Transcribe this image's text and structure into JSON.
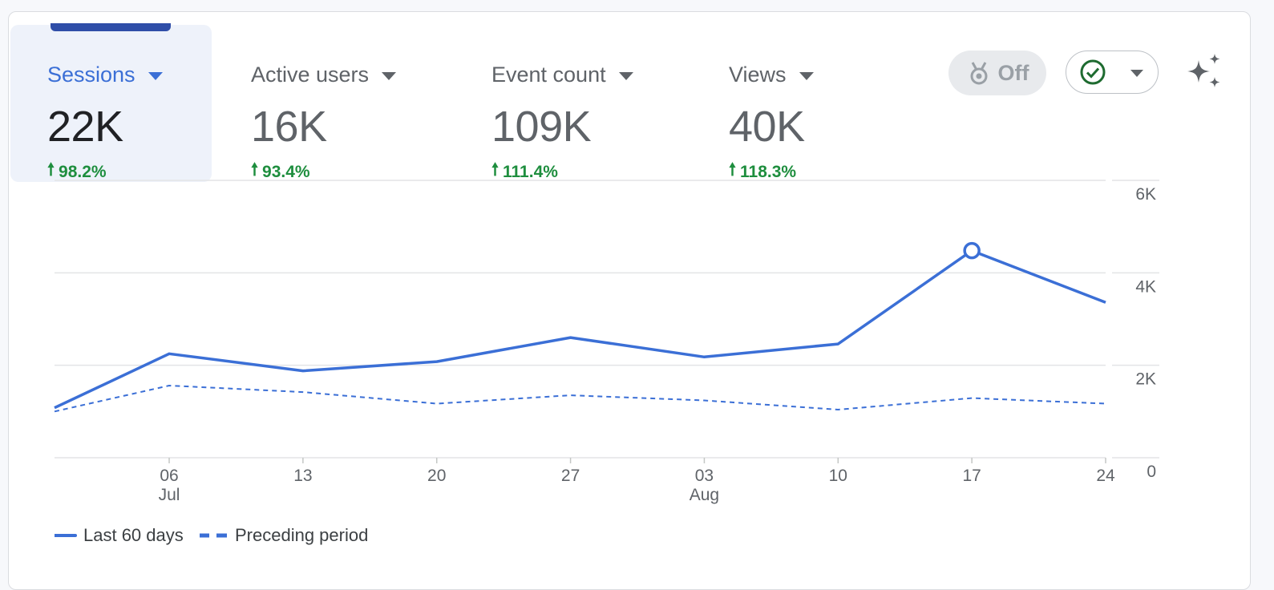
{
  "metrics": [
    {
      "label": "Sessions",
      "value": "22K",
      "change": "98.2%",
      "selected": true
    },
    {
      "label": "Active users",
      "value": "16K",
      "change": "93.4%",
      "selected": false
    },
    {
      "label": "Event count",
      "value": "109K",
      "change": "111.4%",
      "selected": false
    },
    {
      "label": "Views",
      "value": "40K",
      "change": "118.3%",
      "selected": false
    }
  ],
  "controls": {
    "off_label": "Off",
    "off_icon": "medal-icon",
    "check_icon": "check-circle-icon",
    "sparkle_icon": "sparkle-icon"
  },
  "colors": {
    "accent": "#3b6fd6",
    "positive": "#1e8e3e"
  },
  "chart_data": {
    "type": "line",
    "x": [
      "2024-06-30",
      "2024-07-06",
      "2024-07-13",
      "2024-07-20",
      "2024-07-27",
      "2024-08-03",
      "2024-08-10",
      "2024-08-17",
      "2024-08-24"
    ],
    "x_tick_labels": [
      "06",
      "13",
      "20",
      "27",
      "03",
      "10",
      "17",
      "24"
    ],
    "x_tick_sublabels": {
      "06": "Jul",
      "03": "Aug"
    },
    "y_tick_labels": [
      "6K",
      "4K",
      "2K",
      "0"
    ],
    "ylim": [
      0,
      6000
    ],
    "grid": true,
    "legend_position": "bottom-left",
    "highlight_x": "2024-08-17",
    "series": [
      {
        "name": "Last 60 days",
        "style": "solid",
        "values": [
          1080,
          2250,
          1880,
          2080,
          2600,
          2180,
          2460,
          4480,
          3360
        ]
      },
      {
        "name": "Preceding period",
        "style": "dashed",
        "values": [
          1000,
          1560,
          1420,
          1170,
          1350,
          1240,
          1040,
          1290,
          1170
        ]
      }
    ]
  }
}
